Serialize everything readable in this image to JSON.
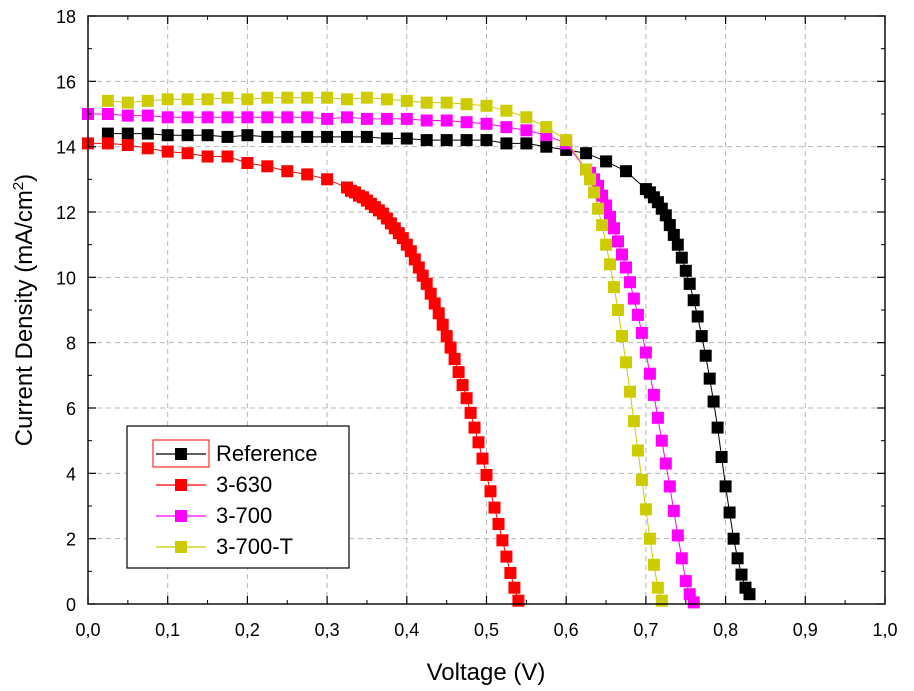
{
  "chart_data": {
    "type": "scatter",
    "xlabel": "Voltage (V)",
    "ylabel": "Current Density (mA/cm",
    "ylabel_sup": "2",
    "ylabel_close": ")",
    "xlim": [
      0,
      1.0
    ],
    "ylim": [
      0,
      18
    ],
    "x_ticks": [
      "0,0",
      "0,1",
      "0,2",
      "0,3",
      "0,4",
      "0,5",
      "0,6",
      "0,7",
      "0,8",
      "0,9",
      "1,0"
    ],
    "x_tick_values": [
      0,
      0.1,
      0.2,
      0.3,
      0.4,
      0.5,
      0.6,
      0.7,
      0.8,
      0.9,
      1.0
    ],
    "y_ticks": [
      "0",
      "2",
      "4",
      "6",
      "8",
      "10",
      "12",
      "14",
      "16",
      "18"
    ],
    "y_tick_values": [
      0,
      2,
      4,
      6,
      8,
      10,
      12,
      14,
      16,
      18
    ],
    "grid": true,
    "legend_position": "bottom-left",
    "series": [
      {
        "name": "Reference",
        "color": "#000000",
        "x": [
          0.025,
          0.05,
          0.075,
          0.1,
          0.125,
          0.15,
          0.175,
          0.2,
          0.225,
          0.25,
          0.275,
          0.3,
          0.325,
          0.35,
          0.375,
          0.4,
          0.425,
          0.45,
          0.475,
          0.5,
          0.525,
          0.55,
          0.575,
          0.6,
          0.625,
          0.65,
          0.675,
          0.7,
          0.705,
          0.71,
          0.715,
          0.72,
          0.725,
          0.73,
          0.735,
          0.74,
          0.745,
          0.75,
          0.755,
          0.76,
          0.765,
          0.77,
          0.775,
          0.78,
          0.785,
          0.79,
          0.795,
          0.8,
          0.805,
          0.81,
          0.815,
          0.82,
          0.825,
          0.83
        ],
        "y": [
          14.4,
          14.4,
          14.4,
          14.35,
          14.35,
          14.35,
          14.3,
          14.35,
          14.3,
          14.3,
          14.3,
          14.3,
          14.3,
          14.3,
          14.25,
          14.25,
          14.2,
          14.2,
          14.2,
          14.2,
          14.1,
          14.1,
          14.0,
          13.9,
          13.8,
          13.55,
          13.25,
          12.7,
          12.6,
          12.45,
          12.3,
          12.1,
          11.9,
          11.6,
          11.3,
          11.0,
          10.6,
          10.2,
          9.8,
          9.3,
          8.8,
          8.2,
          7.6,
          6.9,
          6.2,
          5.4,
          4.5,
          3.6,
          2.8,
          2.0,
          1.4,
          0.9,
          0.5,
          0.3
        ]
      },
      {
        "name": "3-630",
        "color": "#ff0000",
        "x": [
          0.0,
          0.025,
          0.05,
          0.075,
          0.1,
          0.125,
          0.15,
          0.175,
          0.2,
          0.225,
          0.25,
          0.275,
          0.3,
          0.325,
          0.33,
          0.335,
          0.34,
          0.345,
          0.35,
          0.355,
          0.36,
          0.365,
          0.37,
          0.375,
          0.38,
          0.385,
          0.39,
          0.395,
          0.4,
          0.405,
          0.41,
          0.415,
          0.42,
          0.425,
          0.43,
          0.435,
          0.44,
          0.445,
          0.45,
          0.455,
          0.46,
          0.465,
          0.47,
          0.475,
          0.48,
          0.485,
          0.49,
          0.495,
          0.5,
          0.505,
          0.51,
          0.515,
          0.52,
          0.525,
          0.53,
          0.535,
          0.54
        ],
        "y": [
          14.1,
          14.1,
          14.05,
          13.95,
          13.85,
          13.8,
          13.7,
          13.7,
          13.5,
          13.4,
          13.25,
          13.15,
          13.0,
          12.75,
          12.65,
          12.6,
          12.5,
          12.45,
          12.35,
          12.25,
          12.15,
          12.05,
          11.95,
          11.8,
          11.65,
          11.5,
          11.35,
          11.2,
          11.0,
          10.8,
          10.55,
          10.3,
          10.05,
          9.8,
          9.5,
          9.2,
          8.9,
          8.55,
          8.2,
          7.85,
          7.5,
          7.1,
          6.7,
          6.3,
          5.85,
          5.4,
          4.95,
          4.45,
          3.95,
          3.45,
          2.95,
          2.45,
          1.95,
          1.45,
          0.95,
          0.5,
          0.1
        ]
      },
      {
        "name": "3-700",
        "color": "#ff00ff",
        "x": [
          0.0,
          0.025,
          0.05,
          0.075,
          0.1,
          0.125,
          0.15,
          0.175,
          0.2,
          0.225,
          0.25,
          0.275,
          0.3,
          0.325,
          0.35,
          0.375,
          0.4,
          0.425,
          0.45,
          0.475,
          0.5,
          0.525,
          0.55,
          0.575,
          0.6,
          0.625,
          0.63,
          0.635,
          0.64,
          0.645,
          0.65,
          0.655,
          0.66,
          0.665,
          0.67,
          0.675,
          0.68,
          0.685,
          0.69,
          0.695,
          0.7,
          0.705,
          0.71,
          0.715,
          0.72,
          0.725,
          0.73,
          0.735,
          0.74,
          0.745,
          0.75,
          0.755,
          0.76
        ],
        "y": [
          15.0,
          15.0,
          14.95,
          14.95,
          14.9,
          14.9,
          14.9,
          14.9,
          14.9,
          14.9,
          14.9,
          14.9,
          14.85,
          14.9,
          14.85,
          14.85,
          14.85,
          14.8,
          14.8,
          14.75,
          14.7,
          14.6,
          14.5,
          14.35,
          14.1,
          13.3,
          13.2,
          13.0,
          12.8,
          12.5,
          12.2,
          11.85,
          11.5,
          11.1,
          10.7,
          10.3,
          9.85,
          9.35,
          8.85,
          8.3,
          7.7,
          7.05,
          6.4,
          5.7,
          5.0,
          4.3,
          3.6,
          2.85,
          2.1,
          1.4,
          0.7,
          0.3,
          0.05
        ]
      },
      {
        "name": "3-700-T",
        "color": "#cccc00",
        "x": [
          0.025,
          0.05,
          0.075,
          0.1,
          0.125,
          0.15,
          0.175,
          0.2,
          0.225,
          0.25,
          0.275,
          0.3,
          0.325,
          0.35,
          0.375,
          0.4,
          0.425,
          0.45,
          0.475,
          0.5,
          0.525,
          0.55,
          0.575,
          0.6,
          0.625,
          0.63,
          0.635,
          0.64,
          0.645,
          0.65,
          0.655,
          0.66,
          0.665,
          0.67,
          0.675,
          0.68,
          0.685,
          0.69,
          0.695,
          0.7,
          0.705,
          0.71,
          0.715,
          0.72
        ],
        "y": [
          15.4,
          15.35,
          15.4,
          15.45,
          15.45,
          15.45,
          15.5,
          15.45,
          15.5,
          15.5,
          15.5,
          15.5,
          15.45,
          15.5,
          15.45,
          15.4,
          15.35,
          15.35,
          15.3,
          15.25,
          15.1,
          14.9,
          14.6,
          14.2,
          13.3,
          13.0,
          12.6,
          12.1,
          11.6,
          11.0,
          10.4,
          9.7,
          9.0,
          8.2,
          7.4,
          6.5,
          5.6,
          4.7,
          3.8,
          2.9,
          2.0,
          1.2,
          0.5,
          0.1
        ]
      }
    ]
  }
}
